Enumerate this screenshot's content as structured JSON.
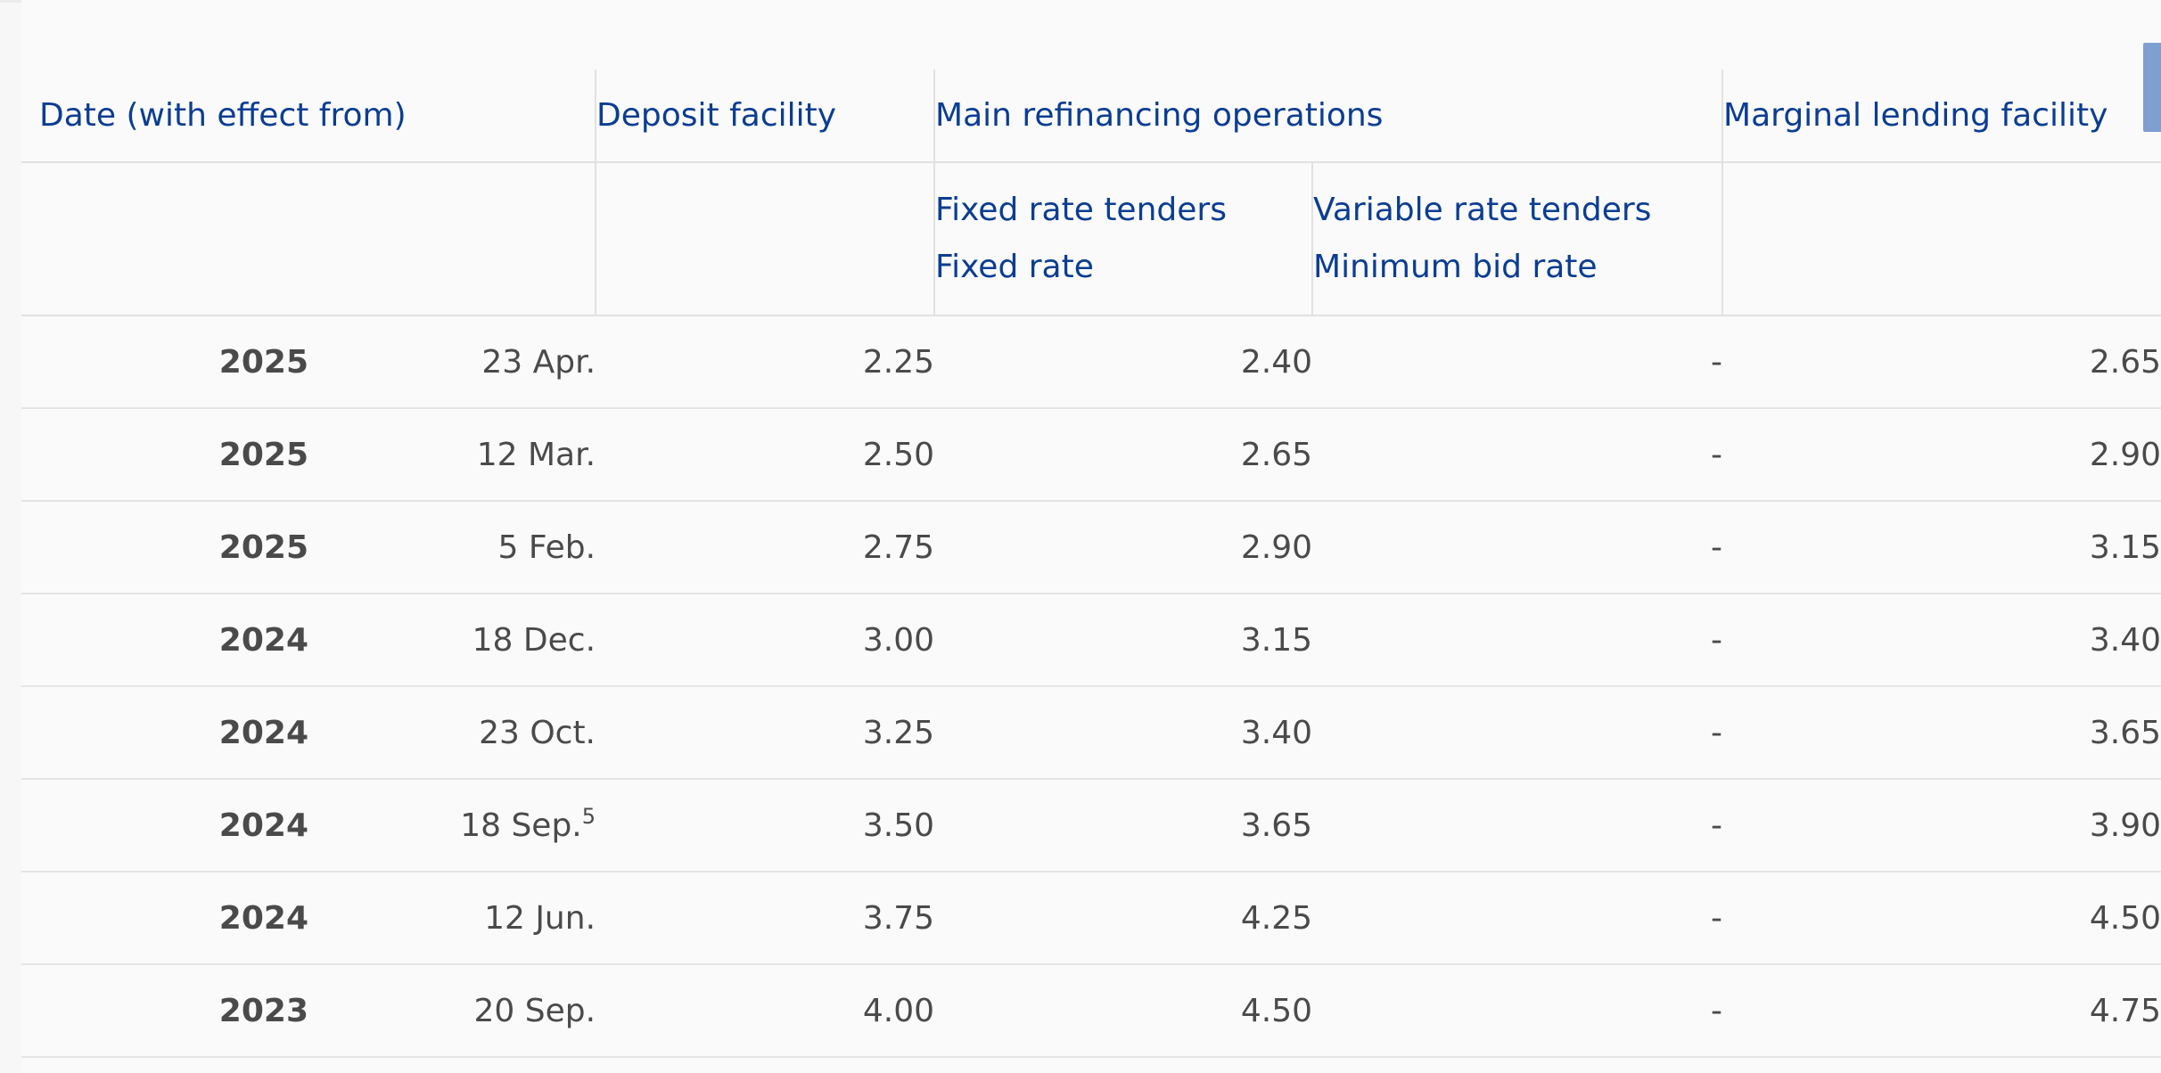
{
  "table": {
    "headers": {
      "date": "Date (with effect from)",
      "deposit": "Deposit facility",
      "mro": "Main refinancing operations",
      "mlf": "Marginal lending facility"
    },
    "subheaders": {
      "fixed_line1": "Fixed rate tenders",
      "fixed_line2": "Fixed rate",
      "variable_line1": "Variable rate tenders",
      "variable_line2": "Minimum bid rate"
    },
    "rows": [
      {
        "year": "2025",
        "date": "23 Apr.",
        "footnote": "",
        "deposit": "2.25",
        "fixed": "2.40",
        "variable": "-",
        "mlf": "2.65"
      },
      {
        "year": "2025",
        "date": "12 Mar.",
        "footnote": "",
        "deposit": "2.50",
        "fixed": "2.65",
        "variable": "-",
        "mlf": "2.90"
      },
      {
        "year": "2025",
        "date": "5 Feb.",
        "footnote": "",
        "deposit": "2.75",
        "fixed": "2.90",
        "variable": "-",
        "mlf": "3.15"
      },
      {
        "year": "2024",
        "date": "18 Dec.",
        "footnote": "",
        "deposit": "3.00",
        "fixed": "3.15",
        "variable": "-",
        "mlf": "3.40"
      },
      {
        "year": "2024",
        "date": "23 Oct.",
        "footnote": "",
        "deposit": "3.25",
        "fixed": "3.40",
        "variable": "-",
        "mlf": "3.65"
      },
      {
        "year": "2024",
        "date": "18 Sep.",
        "footnote": "5",
        "deposit": "3.50",
        "fixed": "3.65",
        "variable": "-",
        "mlf": "3.90"
      },
      {
        "year": "2024",
        "date": "12 Jun.",
        "footnote": "",
        "deposit": "3.75",
        "fixed": "4.25",
        "variable": "-",
        "mlf": "4.50"
      },
      {
        "year": "2023",
        "date": "20 Sep.",
        "footnote": "",
        "deposit": "4.00",
        "fixed": "4.50",
        "variable": "-",
        "mlf": "4.75"
      }
    ]
  },
  "colors": {
    "header_text": "#0b3d91",
    "body_text": "#4a4a4a",
    "divider": "#e1e1e1",
    "scrollbar": "#7f9fd0"
  }
}
